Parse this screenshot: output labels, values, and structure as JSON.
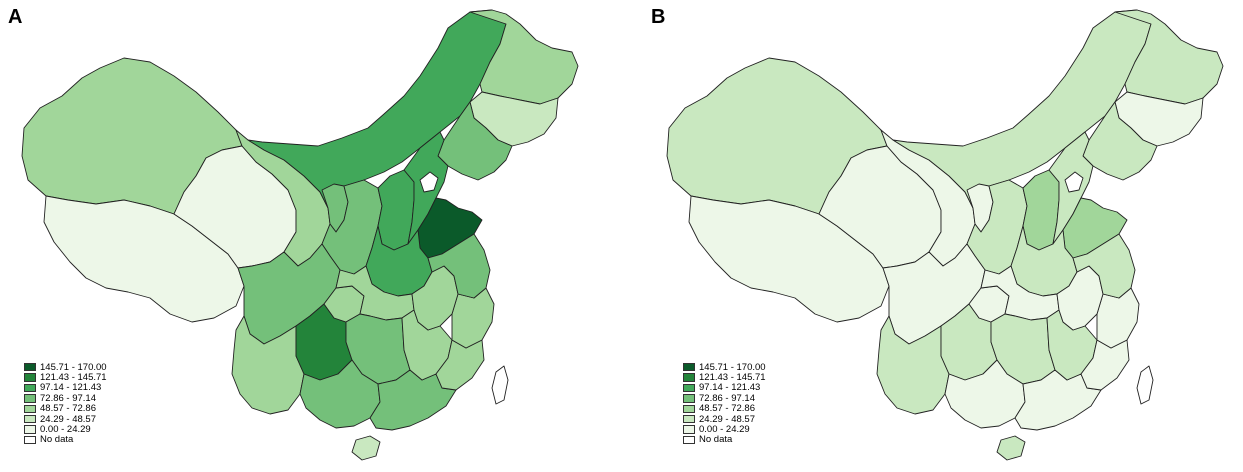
{
  "panels": [
    {
      "label": "A"
    },
    {
      "label": "B"
    }
  ],
  "legend": [
    {
      "label": "145.71 - 170.00",
      "color": "#0b5a2a"
    },
    {
      "label": "121.43 - 145.71",
      "color": "#23843a"
    },
    {
      "label": "97.14 - 121.43",
      "color": "#41a85a"
    },
    {
      "label": "72.86 - 97.14",
      "color": "#74c07a"
    },
    {
      "label": "48.57 - 72.86",
      "color": "#a1d69a"
    },
    {
      "label": "24.29 - 48.57",
      "color": "#c9e8c0"
    },
    {
      "label": "0.00 - 24.29",
      "color": "#edf7e8"
    },
    {
      "label": "No data",
      "color": "#ffffff"
    }
  ],
  "regions": [
    {
      "name": "xinjiang",
      "class_a": 4,
      "class_b": 5
    },
    {
      "name": "tibet",
      "class_a": 6,
      "class_b": 6
    },
    {
      "name": "qinghai",
      "class_a": 6,
      "class_b": 6
    },
    {
      "name": "gansu",
      "class_a": 4,
      "class_b": 6
    },
    {
      "name": "inner-mongolia",
      "class_a": 2,
      "class_b": 5
    },
    {
      "name": "heilongjiang",
      "class_a": 4,
      "class_b": 5
    },
    {
      "name": "jilin",
      "class_a": 5,
      "class_b": 6
    },
    {
      "name": "liaoning",
      "class_a": 3,
      "class_b": 5
    },
    {
      "name": "ningxia",
      "class_a": 3,
      "class_b": 6
    },
    {
      "name": "shaanxi",
      "class_a": 3,
      "class_b": 5
    },
    {
      "name": "shanxi",
      "class_a": 2,
      "class_b": 4
    },
    {
      "name": "hebei",
      "class_a": 2,
      "class_b": 5
    },
    {
      "name": "shandong",
      "class_a": 0,
      "class_b": 4
    },
    {
      "name": "henan",
      "class_a": 2,
      "class_b": 5
    },
    {
      "name": "sichuan",
      "class_a": 3,
      "class_b": 6
    },
    {
      "name": "yunnan",
      "class_a": 4,
      "class_b": 5
    },
    {
      "name": "guizhou",
      "class_a": 1,
      "class_b": 5
    },
    {
      "name": "chongqing",
      "class_a": 4,
      "class_b": 6
    },
    {
      "name": "hubei",
      "class_a": 4,
      "class_b": 6
    },
    {
      "name": "hunan",
      "class_a": 3,
      "class_b": 5
    },
    {
      "name": "guangxi",
      "class_a": 3,
      "class_b": 6
    },
    {
      "name": "guangdong",
      "class_a": 3,
      "class_b": 6
    },
    {
      "name": "jiangxi",
      "class_a": 4,
      "class_b": 5
    },
    {
      "name": "fujian",
      "class_a": 4,
      "class_b": 6
    },
    {
      "name": "zhejiang",
      "class_a": 4,
      "class_b": 6
    },
    {
      "name": "anhui",
      "class_a": 4,
      "class_b": 6
    },
    {
      "name": "jiangsu",
      "class_a": 3,
      "class_b": 5
    },
    {
      "name": "hainan",
      "class_a": 5,
      "class_b": 5
    },
    {
      "name": "taiwan",
      "class_a": 7,
      "class_b": 7
    },
    {
      "name": "beijing-tianjin",
      "class_a": 7,
      "class_b": 7
    }
  ]
}
